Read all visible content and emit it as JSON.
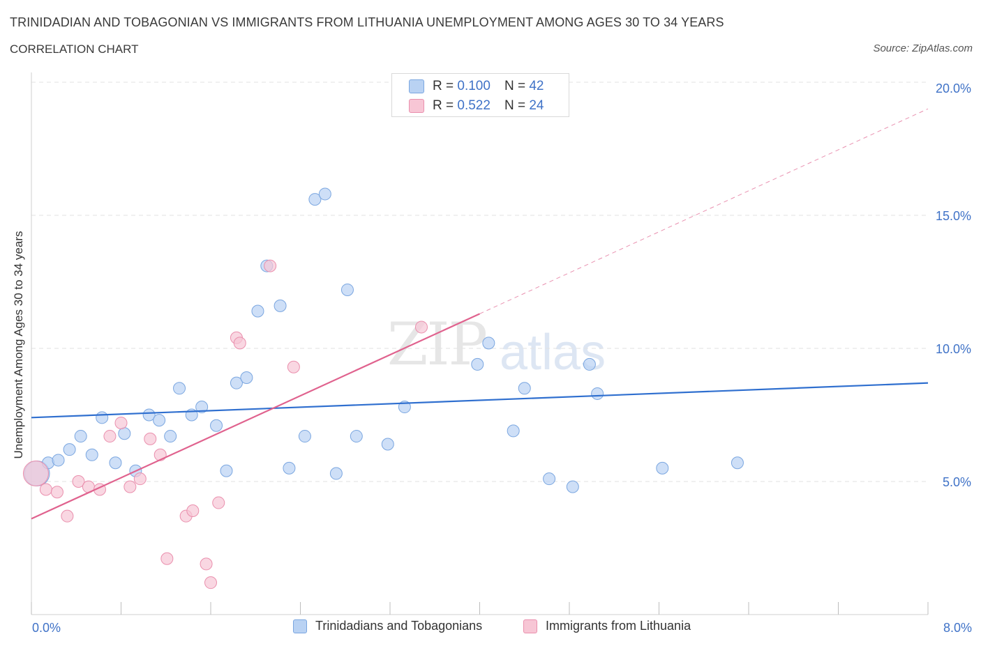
{
  "title": "TRINIDADIAN AND TOBAGONIAN VS IMMIGRANTS FROM LITHUANIA UNEMPLOYMENT AMONG AGES 30 TO 34 YEARS",
  "subtitle": "CORRELATION CHART",
  "source": "Source: ZipAtlas.com",
  "watermark": {
    "zip": "ZIP",
    "atlas": "atlas"
  },
  "legend": {
    "rows": [
      {
        "r_label": "R = ",
        "r_value": "0.100",
        "n_label": "N = ",
        "n_value": "42"
      },
      {
        "r_label": "R = ",
        "r_value": "0.522",
        "n_label": "N = ",
        "n_value": "24"
      }
    ]
  },
  "colors": {
    "blue_fill": "#b9d2f3",
    "blue_stroke": "#7aa6e0",
    "blue_line": "#2f6fcf",
    "pink_fill": "#f7c6d5",
    "pink_stroke": "#ea8fad",
    "pink_line": "#e0628e",
    "tick_label": "#3f72c7",
    "grid": "#e2e2e2"
  },
  "chart_data": {
    "type": "scatter",
    "xlabel": "",
    "ylabel": "Unemployment Among Ages 30 to 34 years",
    "xlim": [
      0,
      8
    ],
    "ylim": [
      0,
      20
    ],
    "x_tick_labels": [
      "0.0%",
      "8.0%"
    ],
    "y_ticks": [
      5,
      10,
      15,
      20
    ],
    "y_tick_labels": [
      "5.0%",
      "10.0%",
      "15.0%",
      "20.0%"
    ],
    "grid": true,
    "legend_position": "top-center",
    "series": [
      {
        "name": "Trinidadians and Tobagonians",
        "trend": {
          "x0": 0,
          "y0": 7.4,
          "x1": 8,
          "y1": 8.7
        },
        "points": [
          {
            "x": 0.05,
            "y": 5.3,
            "big": true
          },
          {
            "x": 0.15,
            "y": 5.7
          },
          {
            "x": 0.24,
            "y": 5.8
          },
          {
            "x": 0.34,
            "y": 6.2
          },
          {
            "x": 0.44,
            "y": 6.7
          },
          {
            "x": 0.54,
            "y": 6.0
          },
          {
            "x": 0.63,
            "y": 7.4
          },
          {
            "x": 0.75,
            "y": 5.7
          },
          {
            "x": 0.83,
            "y": 6.8
          },
          {
            "x": 0.93,
            "y": 5.4
          },
          {
            "x": 1.05,
            "y": 7.5
          },
          {
            "x": 1.14,
            "y": 7.3
          },
          {
            "x": 1.24,
            "y": 6.7
          },
          {
            "x": 1.32,
            "y": 8.5
          },
          {
            "x": 1.43,
            "y": 7.5
          },
          {
            "x": 1.52,
            "y": 7.8
          },
          {
            "x": 1.65,
            "y": 7.1
          },
          {
            "x": 1.74,
            "y": 5.4
          },
          {
            "x": 1.83,
            "y": 8.7
          },
          {
            "x": 1.92,
            "y": 8.9
          },
          {
            "x": 2.02,
            "y": 11.4
          },
          {
            "x": 2.1,
            "y": 13.1
          },
          {
            "x": 2.22,
            "y": 11.6
          },
          {
            "x": 2.3,
            "y": 5.5
          },
          {
            "x": 2.44,
            "y": 6.7
          },
          {
            "x": 2.53,
            "y": 15.6
          },
          {
            "x": 2.62,
            "y": 15.8
          },
          {
            "x": 2.72,
            "y": 5.3
          },
          {
            "x": 2.82,
            "y": 12.2
          },
          {
            "x": 2.9,
            "y": 6.7
          },
          {
            "x": 3.18,
            "y": 6.4
          },
          {
            "x": 3.33,
            "y": 7.8
          },
          {
            "x": 3.98,
            "y": 9.4
          },
          {
            "x": 4.08,
            "y": 10.2
          },
          {
            "x": 4.3,
            "y": 6.9
          },
          {
            "x": 4.4,
            "y": 8.5
          },
          {
            "x": 4.62,
            "y": 5.1
          },
          {
            "x": 4.83,
            "y": 4.8
          },
          {
            "x": 4.98,
            "y": 9.4
          },
          {
            "x": 5.05,
            "y": 8.3
          },
          {
            "x": 5.63,
            "y": 5.5
          },
          {
            "x": 6.3,
            "y": 5.7
          }
        ]
      },
      {
        "name": "Immigrants from Lithuania",
        "trend": {
          "x0": 0,
          "y0": 3.6,
          "x1": 4.0,
          "y1": 11.3,
          "dash_to_x": 8.0,
          "dash_to_y": 19.0
        },
        "points": [
          {
            "x": 0.04,
            "y": 5.3,
            "big": true
          },
          {
            "x": 0.13,
            "y": 4.7
          },
          {
            "x": 0.23,
            "y": 4.6
          },
          {
            "x": 0.32,
            "y": 3.7
          },
          {
            "x": 0.42,
            "y": 5.0
          },
          {
            "x": 0.51,
            "y": 4.8
          },
          {
            "x": 0.61,
            "y": 4.7
          },
          {
            "x": 0.7,
            "y": 6.7
          },
          {
            "x": 0.8,
            "y": 7.2
          },
          {
            "x": 0.88,
            "y": 4.8
          },
          {
            "x": 0.97,
            "y": 5.1
          },
          {
            "x": 1.06,
            "y": 6.6
          },
          {
            "x": 1.15,
            "y": 6.0
          },
          {
            "x": 1.21,
            "y": 2.1
          },
          {
            "x": 1.38,
            "y": 3.7
          },
          {
            "x": 1.44,
            "y": 3.9
          },
          {
            "x": 1.56,
            "y": 1.9
          },
          {
            "x": 1.6,
            "y": 1.2
          },
          {
            "x": 1.67,
            "y": 4.2
          },
          {
            "x": 1.83,
            "y": 10.4
          },
          {
            "x": 1.86,
            "y": 10.2
          },
          {
            "x": 2.13,
            "y": 13.1
          },
          {
            "x": 2.34,
            "y": 9.3
          },
          {
            "x": 3.48,
            "y": 10.8
          }
        ]
      }
    ]
  }
}
